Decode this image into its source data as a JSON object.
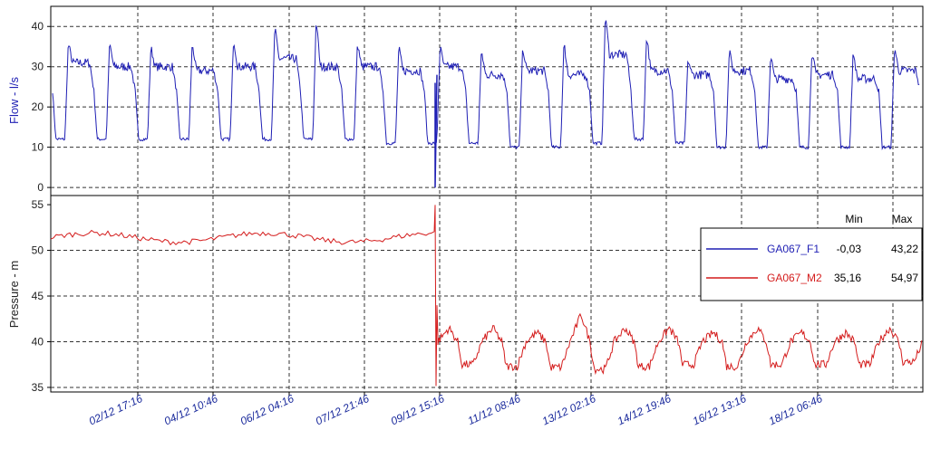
{
  "chart_data": {
    "type": "line",
    "grid": true,
    "x": {
      "tick_labels": [
        "02/12 17:16",
        "04/12 10:46",
        "06/12 04:16",
        "07/12 21:46",
        "09/12 15:16",
        "11/12 08:46",
        "13/12 02:16",
        "14/12 19:46",
        "16/12 13:16",
        "18/12 06:46"
      ]
    },
    "panels": [
      {
        "ylabel": "Flow - l/s",
        "ylim": [
          -2,
          45
        ],
        "yticks": [
          0,
          10,
          20,
          30,
          40
        ],
        "series": [
          {
            "name": "GA067_F1",
            "color": "#1f1fb4",
            "min": "-0,03",
            "max": "43,22",
            "day_peaks": [
              36,
              36,
              35,
              36,
              37,
              40,
              42,
              36,
              35,
              35,
              34,
              35,
              36,
              43,
              38,
              32,
              34,
              33,
              34,
              34,
              35
            ],
            "day_plateaus": [
              31,
              30,
              30,
              29,
              30,
              32,
              30,
              30,
              29,
              30,
              28,
              29,
              28,
              33,
              29,
              28,
              29,
              27,
              28,
              27,
              29
            ],
            "day_troughs": [
              12,
              12,
              12,
              12,
              12,
              12,
              12,
              12,
              11,
              11,
              11,
              10,
              10,
              11,
              12,
              11,
              10,
              10,
              10,
              10,
              10
            ]
          }
        ]
      },
      {
        "ylabel": "Pressure - m",
        "ylim": [
          34.5,
          56
        ],
        "yticks": [
          35,
          40,
          45,
          50,
          55
        ],
        "series": [
          {
            "name": "GA067_M2",
            "color": "#d41c1c",
            "min": "35,16",
            "max": "54,97",
            "level_before_event": 51.4,
            "day_peaks_after_event": [
              41.5,
              41.5,
              41.0,
              43.0,
              41.5,
              41.5,
              41.0,
              41.5,
              41.0,
              41.0,
              41.5
            ],
            "day_troughs_after_event": [
              37.5,
              37.3,
              37.2,
              37.0,
              37.3,
              37.5,
              37.3,
              37.5,
              37.5,
              37.5,
              37.8
            ]
          }
        ]
      }
    ],
    "legend": {
      "placement": "right of lower panel",
      "headers": [
        "Min",
        "Max"
      ]
    }
  }
}
